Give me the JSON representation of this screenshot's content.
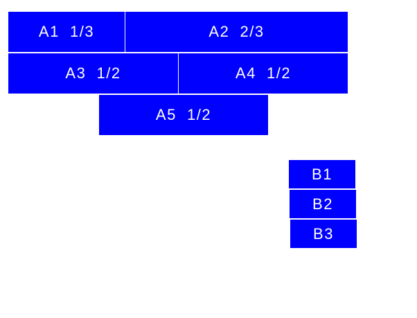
{
  "accent_color": "#0000ff",
  "group_a": [
    {
      "label": "A1  1/3"
    },
    {
      "label": "A2  2/3"
    },
    {
      "label": "A3  1/2"
    },
    {
      "label": "A4  1/2"
    },
    {
      "label": "A5  1/2"
    }
  ],
  "group_b": [
    {
      "label": "B1"
    },
    {
      "label": "B2"
    },
    {
      "label": "B3"
    }
  ]
}
